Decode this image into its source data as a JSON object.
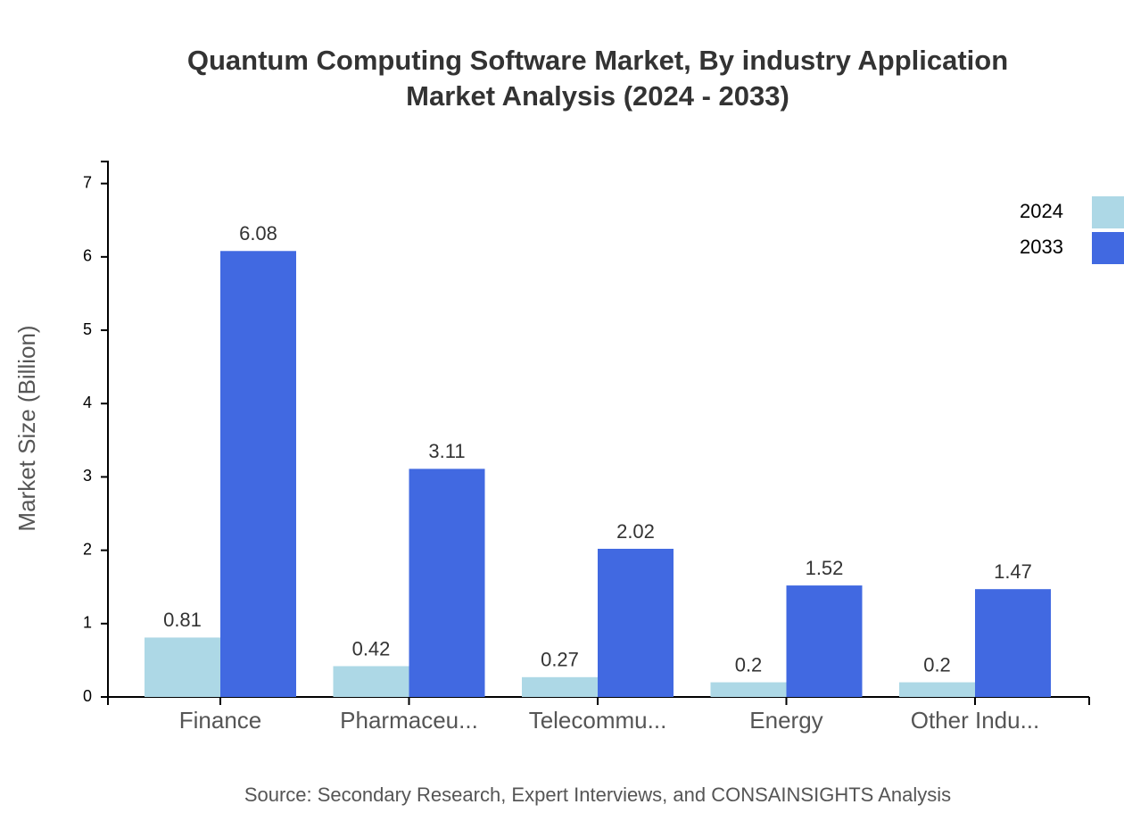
{
  "chart_data": {
    "type": "bar",
    "title": [
      "Quantum Computing Software Market, By industry Application",
      "Market Analysis (2024 - 2033)"
    ],
    "y_label": "Market Size (Billion)",
    "source": "Source: Secondary Research, Expert Interviews, and CONSAINSIGHTS Analysis",
    "categories": [
      "Finance",
      "Pharmaceu...",
      "Telecommu...",
      "Energy",
      "Other Indu..."
    ],
    "series": [
      {
        "name": "2024",
        "color": "#add8e6",
        "values": [
          0.81,
          0.42,
          0.27,
          0.2,
          0.2
        ]
      },
      {
        "name": "2033",
        "color": "#4169e1",
        "values": [
          6.08,
          3.11,
          2.02,
          1.52,
          1.47
        ]
      }
    ],
    "ylim": [
      0,
      7.3
    ],
    "yticks": [
      0,
      1,
      2,
      3,
      4,
      5,
      6,
      7
    ],
    "grid": false,
    "legend": "top-right"
  }
}
